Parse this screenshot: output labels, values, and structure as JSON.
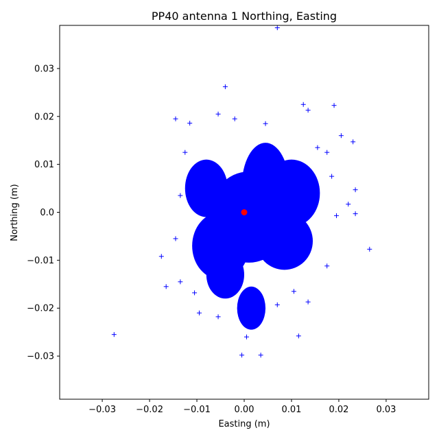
{
  "chart_data": {
    "type": "scatter",
    "title": "PP40 antenna 1 Northing, Easting",
    "xlabel": "Easting (m)",
    "ylabel": "Northing (m)",
    "xlim": [
      -0.039,
      0.039
    ],
    "ylim": [
      -0.039,
      0.039
    ],
    "xticks": [
      -0.03,
      -0.02,
      -0.01,
      0.0,
      0.01,
      0.02,
      0.03
    ],
    "xtick_labels": [
      "−0.03",
      "−0.02",
      "−0.01",
      "0.00",
      "0.01",
      "0.02",
      "0.03"
    ],
    "yticks": [
      -0.03,
      -0.02,
      -0.01,
      0.0,
      0.01,
      0.02,
      0.03
    ],
    "ytick_labels": [
      "−0.03",
      "−0.02",
      "−0.01",
      "0.0",
      "0.01",
      "0.02",
      "0.03"
    ],
    "grid": false,
    "series": [
      {
        "marker": "+",
        "color": "#0000ff",
        "points": [
          [
            0.007,
            0.0385
          ],
          [
            -0.004,
            0.0262
          ],
          [
            -0.0145,
            0.0195
          ],
          [
            -0.0115,
            0.0186
          ],
          [
            -0.0055,
            0.0205
          ],
          [
            0.019,
            0.0223
          ],
          [
            0.0125,
            0.0225
          ],
          [
            0.0135,
            0.0213
          ],
          [
            0.023,
            0.0147
          ],
          [
            0.0205,
            0.016
          ],
          [
            0.0235,
            0.0047
          ],
          [
            0.022,
            0.0017
          ],
          [
            0.0235,
            -0.0003
          ],
          [
            0.0265,
            -0.0077
          ],
          [
            -0.0175,
            -0.0092
          ],
          [
            -0.0165,
            -0.0155
          ],
          [
            -0.0275,
            -0.0255
          ],
          [
            -0.0105,
            -0.0168
          ],
          [
            -0.0095,
            -0.021
          ],
          [
            -0.0005,
            -0.0298
          ],
          [
            0.0035,
            -0.0298
          ],
          [
            0.0115,
            -0.0258
          ],
          [
            0.0135,
            -0.0187
          ],
          [
            0.0175,
            -0.0112
          ],
          [
            0.0195,
            -0.0007
          ],
          [
            0.0185,
            0.0075
          ],
          [
            -0.0125,
            0.0125
          ],
          [
            -0.0135,
            0.0035
          ],
          [
            -0.0145,
            -0.0055
          ],
          [
            -0.0135,
            -0.0145
          ],
          [
            -0.0055,
            -0.0218
          ],
          [
            0.0005,
            -0.026
          ],
          [
            0.0025,
            -0.0235
          ],
          [
            0.007,
            -0.0193
          ],
          [
            0.0105,
            -0.0165
          ],
          [
            0.0155,
            0.0135
          ],
          [
            0.0175,
            0.0125
          ],
          [
            0.0045,
            0.0185
          ],
          [
            -0.002,
            0.0195
          ]
        ]
      },
      {
        "name": "",
        "marker": "o",
        "color": "#ff0000",
        "points": [
          [
            0.0,
            0.0
          ]
        ]
      }
    ]
  }
}
